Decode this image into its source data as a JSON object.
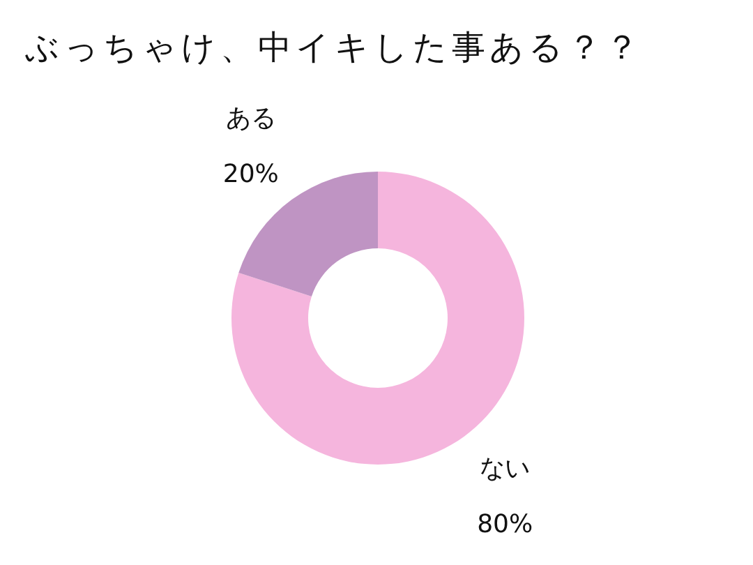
{
  "chart_data": {
    "type": "donut",
    "title": "ぶっちゃけ、中イキした事ある？？",
    "categories": [
      "ない",
      "ある"
    ],
    "values": [
      80,
      20
    ],
    "colors": [
      "#f5b5dd",
      "#bf94c3"
    ],
    "value_labels": [
      "80%",
      "20%"
    ],
    "legend": false
  }
}
